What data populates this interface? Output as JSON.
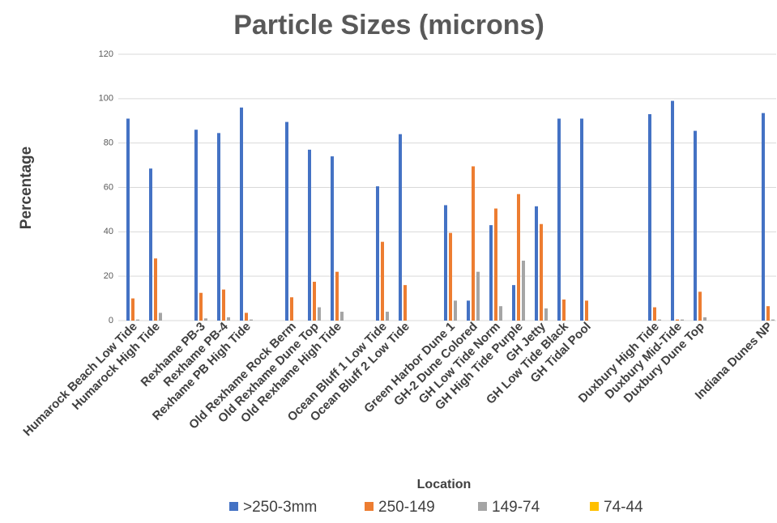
{
  "chart_data": {
    "type": "bar",
    "title": "Particle Sizes (microns)",
    "x_label": "Location",
    "y_label": "Percentage",
    "categories": [
      "Humarock Beach Low Tide",
      "Humarock High Tide",
      null,
      "Rexhame PB-3",
      "Rexhame PB-4",
      "Rexhame PB High Tide",
      null,
      "Old Rexhame Rock Berm",
      "Old Rexhame Dune Top",
      "Old Rexhame High Tide",
      null,
      "Ocean Bluff 1 Low Tide",
      "Ocean Bluff 2 Low Tide",
      null,
      "Green Harbor Dune 1",
      "GH-2 Dune Colored",
      "GH Low Tide Norm",
      "GH High Tide Purple",
      "GH Jetty",
      "GH Low Tide Black",
      "GH Tidal Pool",
      null,
      null,
      "Duxbury High Tide",
      "Duxbury Mid-Tide",
      "Duxbury Dune Top",
      null,
      null,
      "Indiana Dunes NP"
    ],
    "series": [
      {
        "name": ">250-3mm",
        "color": "#4472c4",
        "values": [
          91,
          68.5,
          null,
          86,
          84.5,
          96,
          null,
          89.5,
          77,
          74,
          null,
          60.5,
          84,
          null,
          52,
          9,
          43,
          16,
          51.5,
          91,
          91,
          null,
          null,
          93,
          99,
          85.5,
          null,
          null,
          93.5
        ]
      },
      {
        "name": "250-149",
        "color": "#ed7d31",
        "values": [
          10,
          28,
          null,
          12.5,
          14,
          3.5,
          null,
          10.5,
          17.5,
          22,
          null,
          35.5,
          16,
          null,
          39.5,
          69.5,
          50.5,
          57,
          43.5,
          9.5,
          9,
          null,
          null,
          6,
          0.5,
          13,
          null,
          null,
          6.5
        ]
      },
      {
        "name": "149-74",
        "color": "#a5a5a5",
        "values": [
          0.5,
          3.5,
          null,
          1,
          1.5,
          0.5,
          null,
          0,
          6,
          4,
          null,
          4,
          0,
          null,
          9,
          22,
          6.5,
          27,
          5.5,
          0,
          0,
          null,
          null,
          0.5,
          0.5,
          1.5,
          null,
          null,
          0.5
        ]
      },
      {
        "name": "74-44",
        "color": "#ffc000",
        "values": [
          0,
          0,
          null,
          0,
          0,
          0,
          null,
          0,
          0,
          0,
          null,
          0,
          0,
          null,
          0,
          0,
          0,
          0,
          0,
          0,
          0,
          null,
          null,
          0,
          0,
          0,
          null,
          null,
          0
        ]
      }
    ],
    "ylim": [
      0,
      120
    ],
    "yticks": [
      0,
      20,
      40,
      60,
      80,
      100,
      120
    ],
    "grid": true,
    "legend": "bottom"
  }
}
